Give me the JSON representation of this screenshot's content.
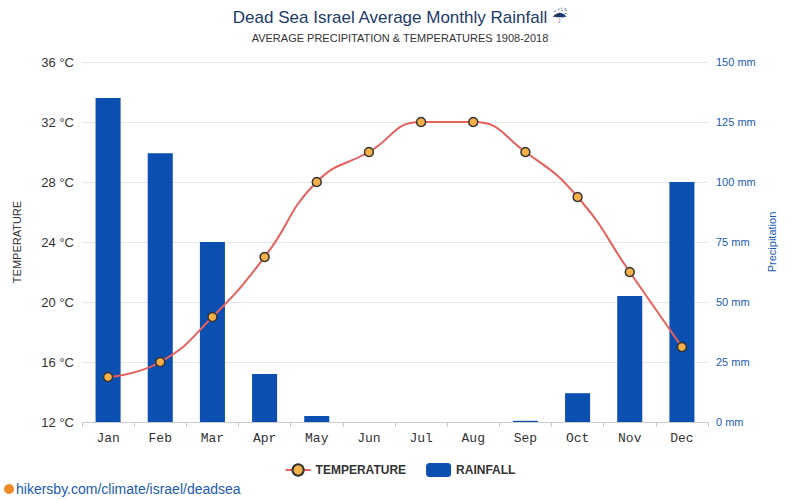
{
  "chart_data": {
    "type": "bar",
    "title": "Dead Sea Israel Average Monthly Rainfall ☔",
    "subtitle": "AVERAGE PRECIPITATION & TEMPERATURES 1908-2018",
    "ylabel": "TEMPERATURE",
    "y2label": "Precipitation",
    "source": "hikersby.com/climate/israel/deadsea",
    "categories": [
      "Jan",
      "Feb",
      "Mar",
      "Apr",
      "May",
      "Jun",
      "Jul",
      "Aug",
      "Sep",
      "Oct",
      "Nov",
      "Dec"
    ],
    "series": [
      {
        "name": "TEMPERATURE",
        "type": "line",
        "color": "#e8605c",
        "marker": "circle",
        "line_style": "solid",
        "values": [
          15,
          16,
          19,
          23,
          28,
          30,
          32,
          32,
          30,
          27,
          22,
          17
        ]
      },
      {
        "name": "RAINFALL",
        "type": "bar",
        "color": "#0b4fb0",
        "axis": "y2",
        "values": [
          135,
          112,
          75,
          20,
          2.5,
          0,
          0,
          0,
          0.5,
          12,
          52.5,
          100
        ]
      }
    ],
    "ylim": [
      12,
      36
    ],
    "yticks": [
      {
        "value": 12,
        "label": "12 °C"
      },
      {
        "value": 16,
        "label": "16 °C"
      },
      {
        "value": 20,
        "label": "20 °C"
      },
      {
        "value": 24,
        "label": "24 °C"
      },
      {
        "value": 28,
        "label": "28 °C"
      },
      {
        "value": 32,
        "label": "32 °C"
      },
      {
        "value": 36,
        "label": "36 °C"
      }
    ],
    "y2lim": [
      0,
      150
    ],
    "y2ticks": [
      {
        "value": 0,
        "label": "0 mm"
      },
      {
        "value": 25,
        "label": "25 mm"
      },
      {
        "value": 50,
        "label": "50 mm"
      },
      {
        "value": 75,
        "label": "75 mm"
      },
      {
        "value": 100,
        "label": "100 mm"
      },
      {
        "value": 125,
        "label": "125 mm"
      },
      {
        "value": 150,
        "label": "150 mm"
      }
    ],
    "grid": true,
    "legend": "bottom"
  }
}
